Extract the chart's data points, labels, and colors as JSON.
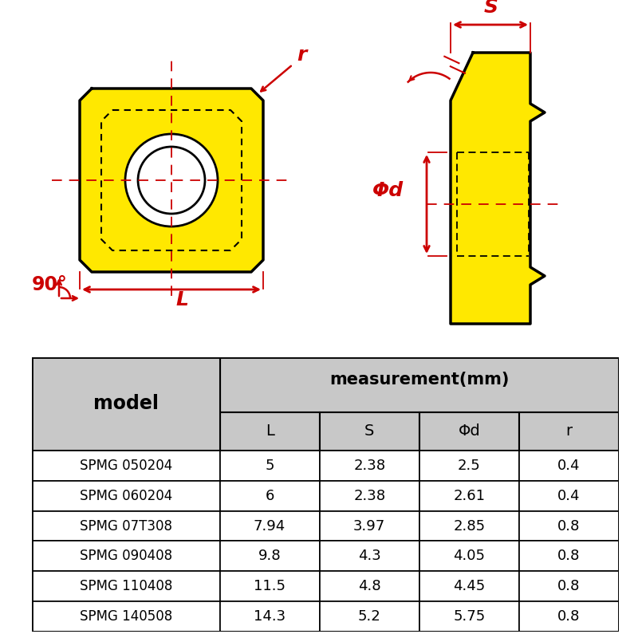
{
  "table_data": {
    "col_headers": [
      "model",
      "L",
      "S",
      "Φd",
      "r"
    ],
    "measurement_header": "measurement(mm)",
    "rows": [
      [
        "SPMG 050204",
        "5",
        "2.38",
        "2.5",
        "0.4"
      ],
      [
        "SPMG 060204",
        "6",
        "2.38",
        "2.61",
        "0.4"
      ],
      [
        "SPMG 07T308",
        "7.94",
        "3.97",
        "2.85",
        "0.8"
      ],
      [
        "SPMG 090408",
        "9.8",
        "4.3",
        "4.05",
        "0.8"
      ],
      [
        "SPMG 110408",
        "11.5",
        "4.8",
        "4.45",
        "0.8"
      ],
      [
        "SPMG 140508",
        "14.3",
        "5.2",
        "5.75",
        "0.8"
      ]
    ]
  },
  "colors": {
    "yellow": "#FFE800",
    "red": "#CC0000",
    "black": "#000000",
    "white": "#FFFFFF",
    "table_header_bg": "#C8C8C8",
    "background": "#FFFFFF"
  },
  "diagram": {
    "angle_label": "90°"
  }
}
